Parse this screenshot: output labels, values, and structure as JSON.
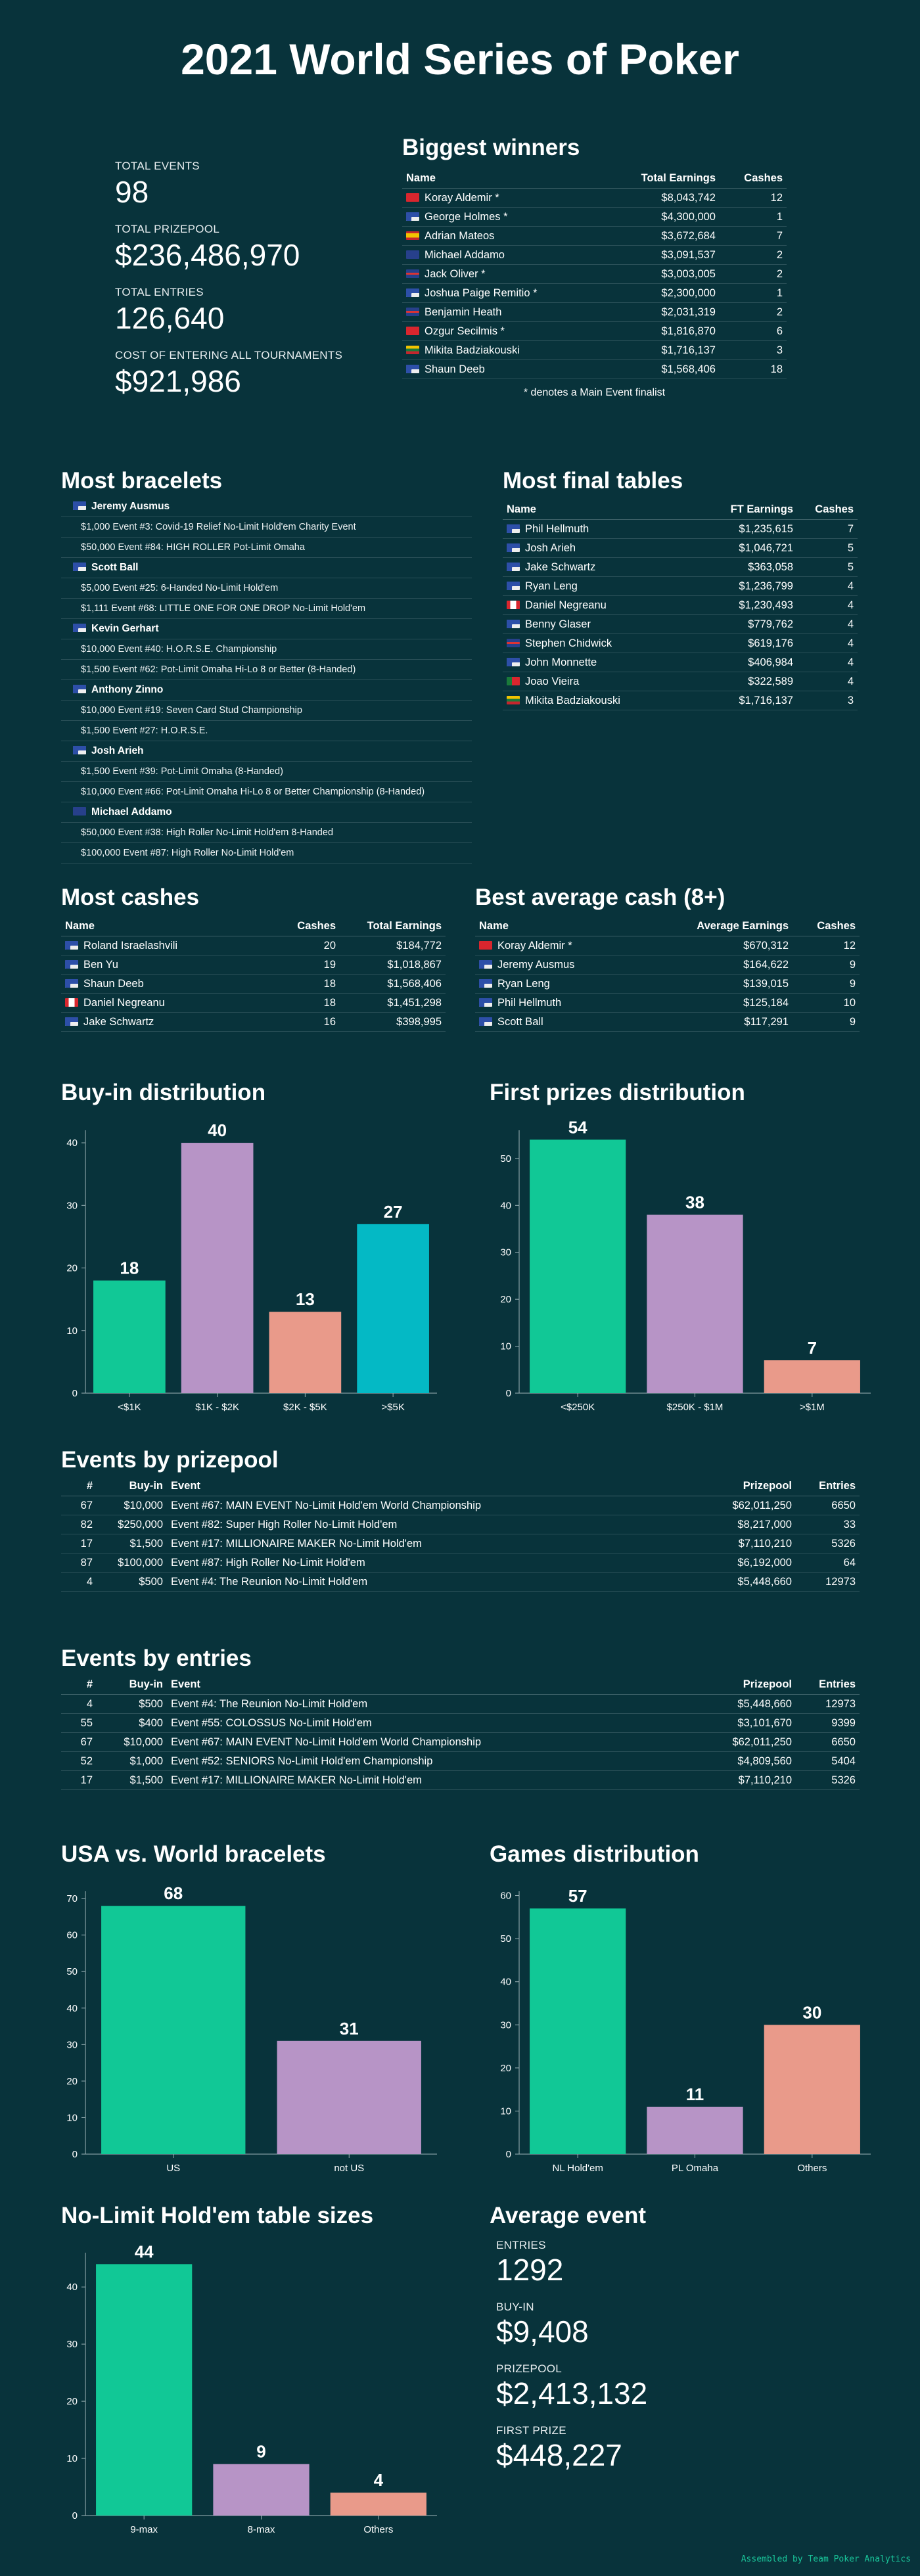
{
  "title": "2021 World Series of Poker",
  "stats": {
    "total_events_label": "TOTAL EVENTS",
    "total_events": "98",
    "total_prizepool_label": "TOTAL PRIZEPOOL",
    "total_prizepool": "$236,486,970",
    "total_entries_label": "TOTAL ENTRIES",
    "total_entries": "126,640",
    "cost_label": "COST OF ENTERING ALL TOURNAMENTS",
    "cost": "$921,986"
  },
  "colors": {
    "bg": "#08333b",
    "green": "#11c896",
    "purple": "#b794c6",
    "salmon": "#e99a8a",
    "teal": "#04b9c5"
  },
  "biggest_winners": {
    "title": "Biggest winners",
    "headers": [
      "Name",
      "Total Earnings",
      "Cashes"
    ],
    "rows": [
      {
        "flag": "TR",
        "name": "Koray Aldemir *",
        "earn": "$8,043,742",
        "cashes": "12"
      },
      {
        "flag": "US",
        "name": "George Holmes *",
        "earn": "$4,300,000",
        "cashes": "1"
      },
      {
        "flag": "ES",
        "name": "Adrian Mateos",
        "earn": "$3,672,684",
        "cashes": "7"
      },
      {
        "flag": "AU",
        "name": "Michael Addamo",
        "earn": "$3,091,537",
        "cashes": "2"
      },
      {
        "flag": "UK",
        "name": "Jack Oliver *",
        "earn": "$3,003,005",
        "cashes": "2"
      },
      {
        "flag": "US",
        "name": "Joshua Paige Remitio *",
        "earn": "$2,300,000",
        "cashes": "1"
      },
      {
        "flag": "UK",
        "name": "Benjamin Heath",
        "earn": "$2,031,319",
        "cashes": "2"
      },
      {
        "flag": "TR",
        "name": "Ozgur Secilmis *",
        "earn": "$1,816,870",
        "cashes": "6"
      },
      {
        "flag": "LT",
        "name": "Mikita Badziakouski",
        "earn": "$1,716,137",
        "cashes": "3"
      },
      {
        "flag": "US",
        "name": "Shaun Deeb",
        "earn": "$1,568,406",
        "cashes": "18"
      }
    ],
    "note": "* denotes a Main Event finalist"
  },
  "most_bracelets": {
    "title": "Most bracelets",
    "players": [
      {
        "flag": "US",
        "name": "Jeremy Ausmus",
        "events": [
          "$1,000 Event #3: Covid-19 Relief No-Limit Hold'em Charity Event",
          "$50,000 Event #84: HIGH ROLLER Pot-Limit Omaha"
        ]
      },
      {
        "flag": "US",
        "name": "Scott Ball",
        "events": [
          "$5,000 Event #25: 6-Handed No-Limit Hold'em",
          "$1,111 Event #68: LITTLE ONE FOR ONE DROP No-Limit Hold'em"
        ]
      },
      {
        "flag": "US",
        "name": "Kevin Gerhart",
        "events": [
          "$10,000 Event #40: H.O.R.S.E. Championship",
          "$1,500 Event #62: Pot-Limit Omaha Hi-Lo 8 or Better (8-Handed)"
        ]
      },
      {
        "flag": "US",
        "name": "Anthony Zinno",
        "events": [
          "$10,000 Event #19: Seven Card Stud Championship",
          "$1,500 Event #27: H.O.R.S.E."
        ]
      },
      {
        "flag": "US",
        "name": "Josh Arieh",
        "events": [
          "$1,500 Event #39: Pot-Limit Omaha (8-Handed)",
          "$10,000 Event #66: Pot-Limit Omaha Hi-Lo 8 or Better Championship (8-Handed)"
        ]
      },
      {
        "flag": "AU",
        "name": "Michael Addamo",
        "events": [
          "$50,000 Event #38: High Roller No-Limit Hold'em 8-Handed",
          "$100,000 Event #87: High Roller No-Limit Hold'em"
        ]
      }
    ]
  },
  "most_final_tables": {
    "title": "Most final tables",
    "headers": [
      "Name",
      "FT Earnings",
      "Cashes"
    ],
    "rows": [
      {
        "flag": "US",
        "name": "Phil Hellmuth",
        "earn": "$1,235,615",
        "cashes": "7"
      },
      {
        "flag": "US",
        "name": "Josh Arieh",
        "earn": "$1,046,721",
        "cashes": "5"
      },
      {
        "flag": "US",
        "name": "Jake Schwartz",
        "earn": "$363,058",
        "cashes": "5"
      },
      {
        "flag": "US",
        "name": "Ryan Leng",
        "earn": "$1,236,799",
        "cashes": "4"
      },
      {
        "flag": "CA",
        "name": "Daniel Negreanu",
        "earn": "$1,230,493",
        "cashes": "4"
      },
      {
        "flag": "US",
        "name": "Benny Glaser",
        "earn": "$779,762",
        "cashes": "4"
      },
      {
        "flag": "UK",
        "name": "Stephen Chidwick",
        "earn": "$619,176",
        "cashes": "4"
      },
      {
        "flag": "US",
        "name": "John Monnette",
        "earn": "$406,984",
        "cashes": "4"
      },
      {
        "flag": "PT",
        "name": "Joao Vieira",
        "earn": "$322,589",
        "cashes": "4"
      },
      {
        "flag": "LT",
        "name": "Mikita Badziakouski",
        "earn": "$1,716,137",
        "cashes": "3"
      }
    ]
  },
  "most_cashes": {
    "title": "Most cashes",
    "headers": [
      "Name",
      "Cashes",
      "Total Earnings"
    ],
    "rows": [
      {
        "flag": "US",
        "name": "Roland Israelashvili",
        "cashes": "20",
        "earn": "$184,772"
      },
      {
        "flag": "US",
        "name": "Ben Yu",
        "cashes": "19",
        "earn": "$1,018,867"
      },
      {
        "flag": "US",
        "name": "Shaun Deeb",
        "cashes": "18",
        "earn": "$1,568,406"
      },
      {
        "flag": "CA",
        "name": "Daniel Negreanu",
        "cashes": "18",
        "earn": "$1,451,298"
      },
      {
        "flag": "US",
        "name": "Jake Schwartz",
        "cashes": "16",
        "earn": "$398,995"
      }
    ]
  },
  "best_avg_cash": {
    "title": "Best average cash (8+)",
    "headers": [
      "Name",
      "Average Earnings",
      "Cashes"
    ],
    "rows": [
      {
        "flag": "TR",
        "name": "Koray Aldemir *",
        "earn": "$670,312",
        "cashes": "12"
      },
      {
        "flag": "US",
        "name": "Jeremy Ausmus",
        "earn": "$164,622",
        "cashes": "9"
      },
      {
        "flag": "US",
        "name": "Ryan Leng",
        "earn": "$139,015",
        "cashes": "9"
      },
      {
        "flag": "US",
        "name": "Phil Hellmuth",
        "earn": "$125,184",
        "cashes": "10"
      },
      {
        "flag": "US",
        "name": "Scott Ball",
        "earn": "$117,291",
        "cashes": "9"
      }
    ]
  },
  "events_by_prizepool": {
    "title": "Events by prizepool",
    "headers": [
      "#",
      "Buy-in",
      "Event",
      "Prizepool",
      "Entries"
    ],
    "rows": [
      {
        "num": "67",
        "buyin": "$10,000",
        "event": "Event #67: MAIN EVENT No-Limit Hold'em World Championship",
        "pool": "$62,011,250",
        "entries": "6650"
      },
      {
        "num": "82",
        "buyin": "$250,000",
        "event": "Event #82: Super High Roller No-Limit Hold'em",
        "pool": "$8,217,000",
        "entries": "33"
      },
      {
        "num": "17",
        "buyin": "$1,500",
        "event": "Event #17: MILLIONAIRE MAKER No-Limit Hold'em",
        "pool": "$7,110,210",
        "entries": "5326"
      },
      {
        "num": "87",
        "buyin": "$100,000",
        "event": "Event #87: High Roller No-Limit Hold'em",
        "pool": "$6,192,000",
        "entries": "64"
      },
      {
        "num": "4",
        "buyin": "$500",
        "event": "Event #4: The Reunion No-Limit Hold'em",
        "pool": "$5,448,660",
        "entries": "12973"
      }
    ]
  },
  "events_by_entries": {
    "title": "Events by entries",
    "headers": [
      "#",
      "Buy-in",
      "Event",
      "Prizepool",
      "Entries"
    ],
    "rows": [
      {
        "num": "4",
        "buyin": "$500",
        "event": "Event #4: The Reunion No-Limit Hold'em",
        "pool": "$5,448,660",
        "entries": "12973"
      },
      {
        "num": "55",
        "buyin": "$400",
        "event": "Event #55: COLOSSUS No-Limit Hold'em",
        "pool": "$3,101,670",
        "entries": "9399"
      },
      {
        "num": "67",
        "buyin": "$10,000",
        "event": "Event #67: MAIN EVENT No-Limit Hold'em World Championship",
        "pool": "$62,011,250",
        "entries": "6650"
      },
      {
        "num": "52",
        "buyin": "$1,000",
        "event": "Event #52: SENIORS No-Limit Hold'em Championship",
        "pool": "$4,809,560",
        "entries": "5404"
      },
      {
        "num": "17",
        "buyin": "$1,500",
        "event": "Event #17: MILLIONAIRE MAKER No-Limit Hold'em",
        "pool": "$7,110,210",
        "entries": "5326"
      }
    ]
  },
  "average_event": {
    "title": "Average event",
    "entries_label": "ENTRIES",
    "entries": "1292",
    "buyin_label": "BUY-IN",
    "buyin": "$9,408",
    "prizepool_label": "PRIZEPOOL",
    "prizepool": "$2,413,132",
    "first_prize_label": "FIRST PRIZE",
    "first_prize": "$448,227"
  },
  "chart_data": [
    {
      "type": "bar",
      "title": "Buy-in distribution",
      "categories": [
        "<$1K",
        "$1K - $2K",
        "$2K - $5K",
        ">$5K"
      ],
      "values": [
        18,
        40,
        13,
        27
      ],
      "ylim": [
        0,
        42
      ],
      "yticks": [
        0,
        10,
        20,
        30,
        40
      ],
      "colors": [
        "#11c896",
        "#b794c6",
        "#e99a8a",
        "#04b9c5"
      ]
    },
    {
      "type": "bar",
      "title": "First prizes distribution",
      "categories": [
        "<$250K",
        "$250K - $1M",
        ">$1M"
      ],
      "values": [
        54,
        38,
        7
      ],
      "ylim": [
        0,
        56
      ],
      "yticks": [
        0,
        10,
        20,
        30,
        40,
        50
      ],
      "colors": [
        "#11c896",
        "#b794c6",
        "#e99a8a"
      ]
    },
    {
      "type": "bar",
      "title": "USA vs. World bracelets",
      "categories": [
        "US",
        "not US"
      ],
      "values": [
        68,
        31
      ],
      "ylim": [
        0,
        72
      ],
      "yticks": [
        0,
        10,
        20,
        30,
        40,
        50,
        60,
        70
      ],
      "colors": [
        "#11c896",
        "#b794c6"
      ]
    },
    {
      "type": "bar",
      "title": "Games distribution",
      "categories": [
        "NL Hold'em",
        "PL Omaha",
        "Others"
      ],
      "values": [
        57,
        11,
        30
      ],
      "ylim": [
        0,
        61
      ],
      "yticks": [
        0,
        10,
        20,
        30,
        40,
        50,
        60
      ],
      "colors": [
        "#11c896",
        "#b794c6",
        "#e99a8a"
      ]
    },
    {
      "type": "bar",
      "title": "No-Limit Hold'em table sizes",
      "categories": [
        "9-max",
        "8-max",
        "Others"
      ],
      "values": [
        44,
        9,
        4
      ],
      "ylim": [
        0,
        46
      ],
      "yticks": [
        0,
        10,
        20,
        30,
        40
      ],
      "colors": [
        "#11c896",
        "#b794c6",
        "#e99a8a"
      ]
    }
  ],
  "footer": "Assembled by Team Poker Analytics"
}
